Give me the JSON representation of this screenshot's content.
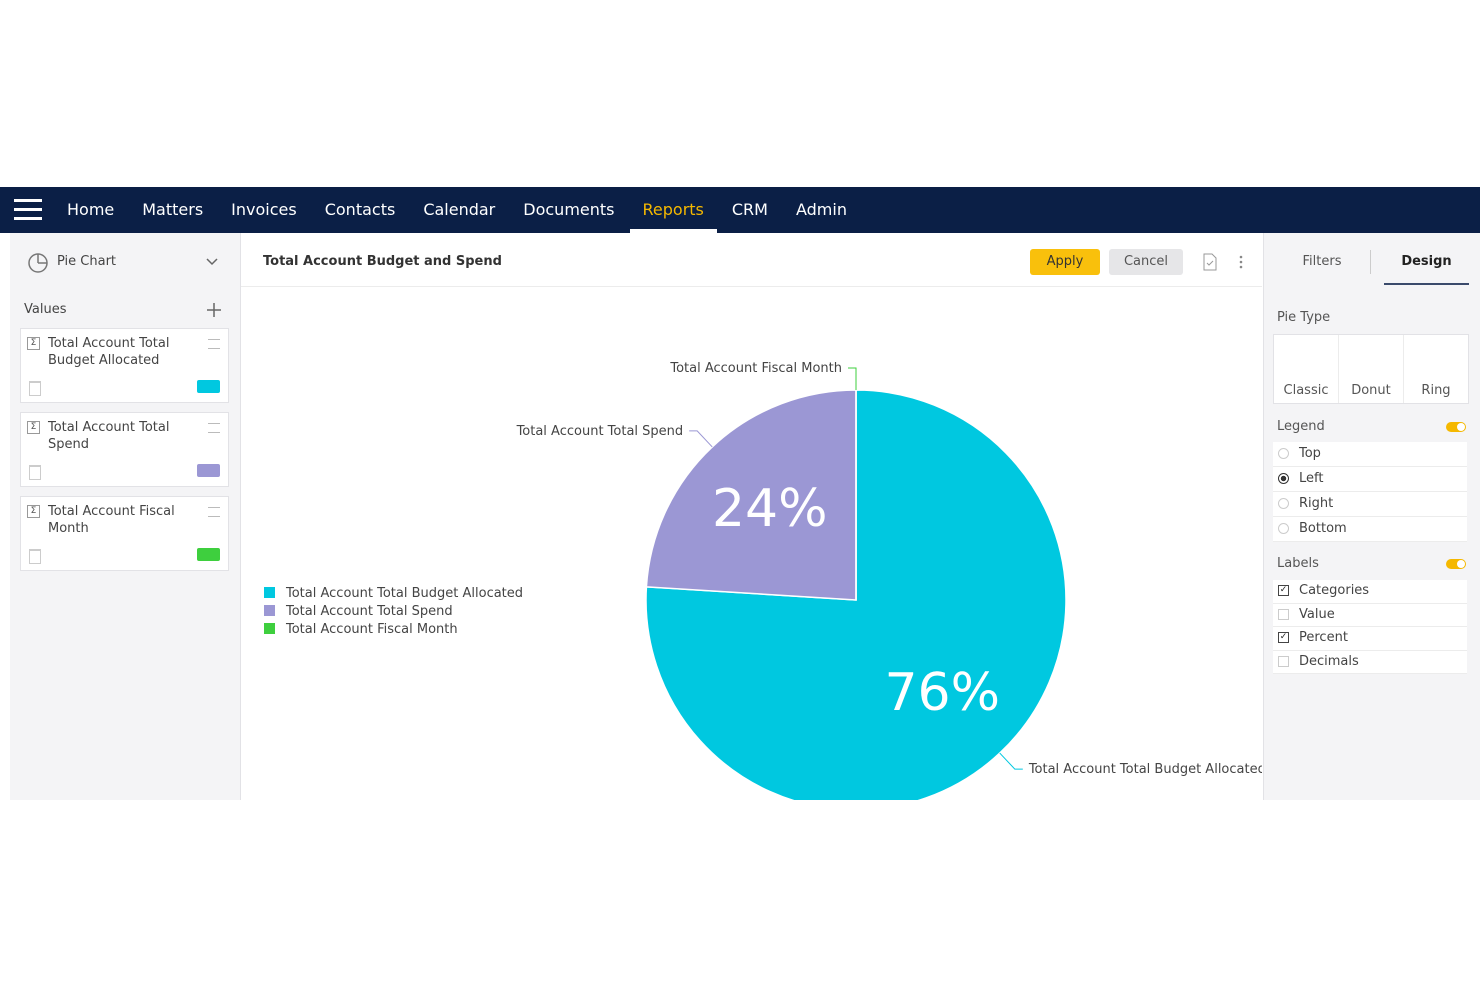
{
  "nav": {
    "items": [
      "Home",
      "Matters",
      "Invoices",
      "Contacts",
      "Calendar",
      "Documents",
      "Reports",
      "CRM",
      "Admin"
    ],
    "active_item": "Reports"
  },
  "left_panel": {
    "chart_type": "Pie Chart",
    "values_label": "Values"
  },
  "header": {
    "title": "Total Account Budget and Spend",
    "apply": "Apply",
    "cancel": "Cancel"
  },
  "right_panel": {
    "tabs": [
      "Filters",
      "Design"
    ],
    "active_tab": "Design",
    "pie_type": {
      "label": "Pie Type",
      "options": [
        "Classic",
        "Donut",
        "Ring"
      ]
    },
    "legend": {
      "label": "Legend",
      "enabled": true,
      "options": [
        "Top",
        "Left",
        "Right",
        "Bottom"
      ],
      "selected": "Left"
    },
    "labels": {
      "label": "Labels",
      "enabled": true,
      "options": [
        {
          "label": "Categories",
          "checked": true
        },
        {
          "label": "Value",
          "checked": false
        },
        {
          "label": "Percent",
          "checked": true
        },
        {
          "label": "Decimals",
          "checked": false
        }
      ]
    }
  },
  "chart_data": {
    "type": "pie",
    "categories": [
      "Total Account Total Budget Allocated",
      "Total Account Total Spend",
      "Total Account Fiscal Month"
    ],
    "values": [
      76,
      24,
      0
    ],
    "value_labels": [
      "76%",
      "24%",
      null
    ],
    "colors": [
      "#00c8e0",
      "#9b97d4",
      "#3ecf3e"
    ],
    "legend": "left"
  }
}
